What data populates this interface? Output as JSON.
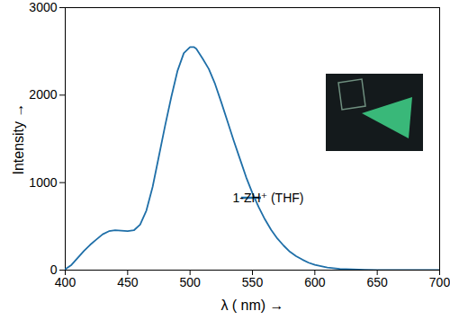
{
  "chart_data": {
    "type": "line",
    "x_label": "λ ( nm) →",
    "y_label": "Intensity →",
    "x": [
      400,
      405,
      410,
      415,
      420,
      425,
      430,
      435,
      440,
      445,
      450,
      455,
      460,
      465,
      470,
      475,
      480,
      485,
      490,
      495,
      500,
      503,
      505,
      510,
      515,
      520,
      525,
      530,
      535,
      540,
      545,
      550,
      555,
      560,
      565,
      570,
      575,
      580,
      585,
      590,
      595,
      600,
      610,
      620,
      630,
      640,
      650,
      675,
      700
    ],
    "series": [
      {
        "name": "1-ZH⁺ (THF)",
        "color": "#1f6fa8",
        "values": [
          10,
          60,
          140,
          220,
          290,
          350,
          410,
          445,
          455,
          450,
          445,
          455,
          520,
          680,
          950,
          1300,
          1650,
          1980,
          2280,
          2480,
          2550,
          2550,
          2530,
          2420,
          2300,
          2130,
          1920,
          1700,
          1480,
          1270,
          1060,
          880,
          720,
          580,
          460,
          360,
          280,
          210,
          160,
          120,
          85,
          60,
          30,
          15,
          8,
          4,
          2,
          0,
          0
        ]
      }
    ],
    "xlim": [
      400,
      700
    ],
    "xticks": [
      400,
      450,
      500,
      550,
      600,
      650,
      700
    ],
    "ylim": [
      0,
      3000
    ],
    "yticks": [
      0,
      1000,
      2000,
      3000
    ],
    "legend": "right",
    "grid": false
  }
}
